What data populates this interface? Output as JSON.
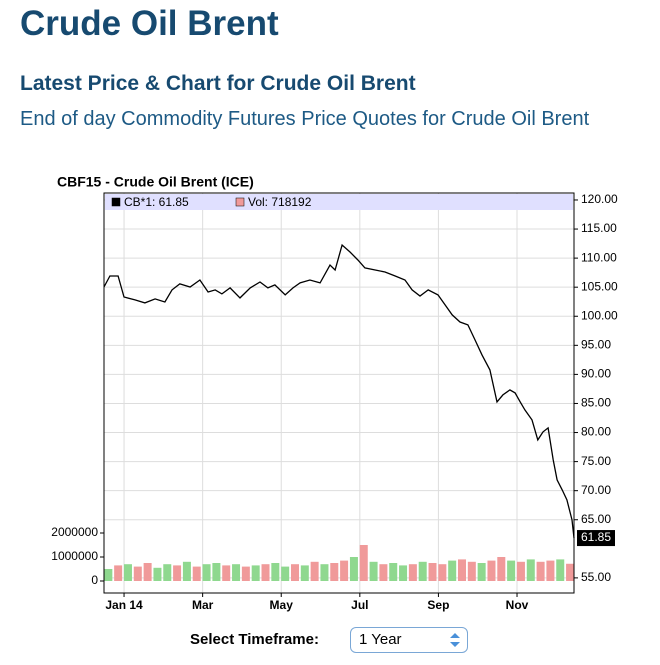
{
  "header": {
    "title": "Crude Oil Brent",
    "subtitle": "Latest Price & Chart for Crude Oil Brent",
    "description": "End of day Commodity Futures Price Quotes for Crude Oil Brent"
  },
  "chart_data": {
    "type": "line",
    "title": "CBF15 - Crude Oil Brent (ICE)",
    "grid": true,
    "xlim": [
      0.49,
      12.45
    ],
    "xticks": [
      {
        "value": 1,
        "label": "Jan 14"
      },
      {
        "value": 3,
        "label": "Mar"
      },
      {
        "value": 5,
        "label": "May"
      },
      {
        "value": 7,
        "label": "Jul"
      },
      {
        "value": 9,
        "label": "Sep"
      },
      {
        "value": 11,
        "label": "Nov"
      }
    ],
    "ylim": [
      52.4,
      121.2
    ],
    "yticks": [
      {
        "value": 55,
        "label": "55.00"
      },
      {
        "value": 65,
        "label": "65.00"
      },
      {
        "value": 70,
        "label": "70.00"
      },
      {
        "value": 75,
        "label": "75.00"
      },
      {
        "value": 80,
        "label": "80.00"
      },
      {
        "value": 85,
        "label": "85.00"
      },
      {
        "value": 90,
        "label": "90.00"
      },
      {
        "value": 95,
        "label": "95.00"
      },
      {
        "value": 100,
        "label": "100.00"
      },
      {
        "value": 105,
        "label": "105.00"
      },
      {
        "value": 110,
        "label": "110.00"
      },
      {
        "value": 115,
        "label": "115.00"
      },
      {
        "value": 120,
        "label": "120.00"
      }
    ],
    "y2lim": [
      -500000,
      16166667
    ],
    "y2ticks": [
      0,
      1000000,
      2000000
    ],
    "series": [
      {
        "name": "CB*1: 61.85",
        "color": "#000000",
        "x": [
          0.49,
          0.64,
          0.85,
          1.0,
          1.28,
          1.53,
          1.79,
          2.04,
          2.22,
          2.42,
          2.68,
          2.93,
          3.14,
          3.32,
          3.49,
          3.7,
          3.95,
          4.21,
          4.46,
          4.66,
          4.84,
          5.1,
          5.3,
          5.48,
          5.73,
          5.99,
          6.24,
          6.37,
          6.55,
          6.75,
          6.95,
          7.13,
          7.39,
          7.64,
          7.9,
          8.15,
          8.33,
          8.53,
          8.74,
          8.99,
          9.17,
          9.35,
          9.55,
          9.75,
          9.93,
          10.11,
          10.31,
          10.49,
          10.64,
          10.82,
          10.95,
          11.08,
          11.2,
          11.38,
          11.53,
          11.66,
          11.79,
          11.92,
          12.02,
          12.15,
          12.27,
          12.4,
          12.45
        ],
        "values": [
          105.04,
          106.93,
          106.93,
          103.32,
          102.81,
          102.29,
          102.98,
          102.46,
          104.53,
          105.56,
          105.04,
          106.24,
          104.18,
          104.53,
          103.84,
          104.87,
          103.15,
          104.87,
          105.9,
          104.87,
          105.39,
          103.67,
          104.87,
          105.73,
          106.24,
          105.73,
          108.82,
          107.96,
          112.26,
          111.06,
          109.68,
          108.31,
          107.96,
          107.62,
          106.93,
          106.24,
          104.53,
          103.49,
          104.53,
          103.67,
          101.95,
          100.23,
          99.02,
          98.51,
          95.93,
          93.35,
          90.77,
          85.27,
          86.47,
          87.33,
          86.82,
          85.27,
          83.89,
          82.17,
          78.73,
          80.11,
          80.8,
          75.3,
          71.86,
          70.14,
          68.42,
          64.98,
          61.85
        ]
      },
      {
        "name": "Vol: 718192",
        "type": "bar",
        "axis": "y2",
        "color": "#f09a9a",
        "x": [
          0.6,
          0.85,
          1.1,
          1.35,
          1.6,
          1.85,
          2.1,
          2.35,
          2.6,
          2.85,
          3.1,
          3.35,
          3.6,
          3.85,
          4.1,
          4.35,
          4.6,
          4.85,
          5.1,
          5.35,
          5.6,
          5.85,
          6.1,
          6.35,
          6.6,
          6.85,
          7.1,
          7.35,
          7.6,
          7.85,
          8.1,
          8.35,
          8.6,
          8.85,
          9.1,
          9.35,
          9.6,
          9.85,
          10.1,
          10.35,
          10.6,
          10.85,
          11.1,
          11.35,
          11.6,
          11.85,
          12.1,
          12.35
        ],
        "values": [
          500000,
          650000,
          700000,
          600000,
          750000,
          550000,
          700000,
          650000,
          800000,
          600000,
          700000,
          750000,
          650000,
          700000,
          600000,
          650000,
          700000,
          750000,
          600000,
          700000,
          650000,
          800000,
          700000,
          750000,
          850000,
          1000000,
          1500000,
          800000,
          700000,
          750000,
          650000,
          700000,
          800000,
          750000,
          700000,
          850000,
          900000,
          800000,
          750000,
          850000,
          1000000,
          850000,
          800000,
          900000,
          800000,
          850000,
          900000,
          718192
        ],
        "colors": [
          "#8fd88f",
          "#f09a9a",
          "#8fd88f",
          "#f09a9a",
          "#f09a9a",
          "#8fd88f",
          "#8fd88f",
          "#f09a9a",
          "#8fd88f",
          "#f09a9a",
          "#8fd88f",
          "#8fd88f",
          "#f09a9a",
          "#8fd88f",
          "#f09a9a",
          "#8fd88f",
          "#f09a9a",
          "#8fd88f",
          "#8fd88f",
          "#f09a9a",
          "#8fd88f",
          "#f09a9a",
          "#8fd88f",
          "#f09a9a",
          "#f09a9a",
          "#8fd88f",
          "#f09a9a",
          "#8fd88f",
          "#f09a9a",
          "#8fd88f",
          "#8fd88f",
          "#f09a9a",
          "#8fd88f",
          "#f09a9a",
          "#f09a9a",
          "#8fd88f",
          "#f09a9a",
          "#f09a9a",
          "#8fd88f",
          "#f09a9a",
          "#f09a9a",
          "#8fd88f",
          "#f09a9a",
          "#8fd88f",
          "#f09a9a",
          "#f09a9a",
          "#8fd88f",
          "#f09a9a"
        ]
      }
    ]
  },
  "timeframe": {
    "label": "Select Timeframe:",
    "selected": "1 Year"
  }
}
